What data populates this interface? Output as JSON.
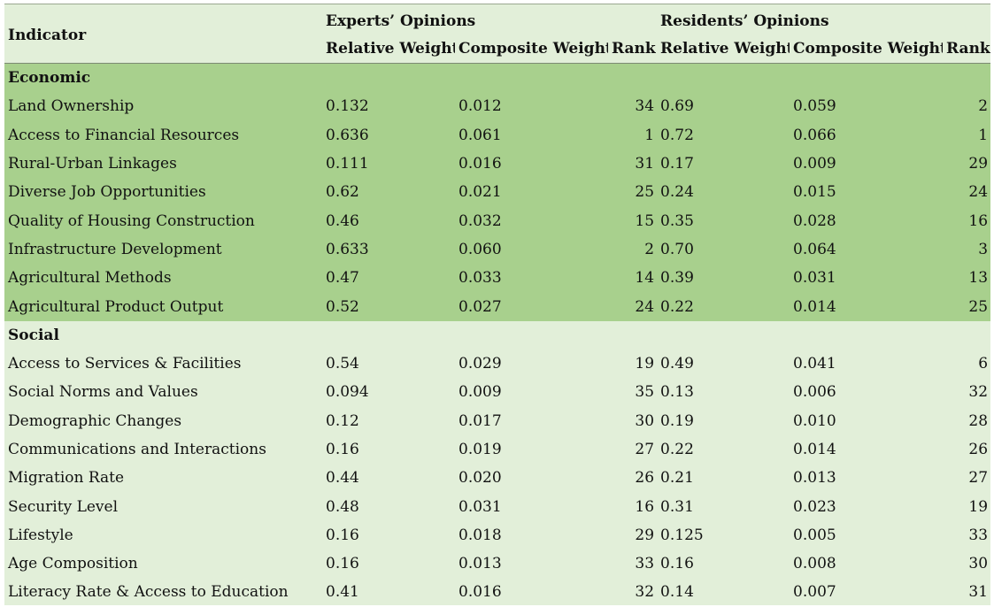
{
  "header": {
    "indicator": "Indicator",
    "experts": "Experts’ Opinions",
    "residents": "Residents’ Opinions",
    "relative_weight": "Relative Weight",
    "composite_weight": "Composite Weight",
    "rank": "Rank"
  },
  "sections": [
    {
      "name": "Economic",
      "rows": [
        {
          "indicator": "Land Ownership",
          "e_rw": "0.132",
          "e_cw": "0.012",
          "e_rank": "34",
          "r_rw": "0.69",
          "r_cw": "0.059",
          "r_rank": "2"
        },
        {
          "indicator": "Access to Financial Resources",
          "e_rw": "0.636",
          "e_cw": "0.061",
          "e_rank": "1",
          "r_rw": "0.72",
          "r_cw": "0.066",
          "r_rank": "1"
        },
        {
          "indicator": "Rural-Urban Linkages",
          "e_rw": "0.111",
          "e_cw": "0.016",
          "e_rank": "31",
          "r_rw": "0.17",
          "r_cw": "0.009",
          "r_rank": "29"
        },
        {
          "indicator": "Diverse Job Opportunities",
          "e_rw": "0.62",
          "e_cw": "0.021",
          "e_rank": "25",
          "r_rw": "0.24",
          "r_cw": "0.015",
          "r_rank": "24"
        },
        {
          "indicator": "Quality of Housing Construction",
          "e_rw": "0.46",
          "e_cw": "0.032",
          "e_rank": "15",
          "r_rw": "0.35",
          "r_cw": "0.028",
          "r_rank": "16"
        },
        {
          "indicator": "Infrastructure Development",
          "e_rw": "0.633",
          "e_cw": "0.060",
          "e_rank": "2",
          "r_rw": "0.70",
          "r_cw": "0.064",
          "r_rank": "3"
        },
        {
          "indicator": "Agricultural Methods",
          "e_rw": "0.47",
          "e_cw": "0.033",
          "e_rank": "14",
          "r_rw": "0.39",
          "r_cw": "0.031",
          "r_rank": "13"
        },
        {
          "indicator": "Agricultural Product Output",
          "e_rw": "0.52",
          "e_cw": "0.027",
          "e_rank": "24",
          "r_rw": "0.22",
          "r_cw": "0.014",
          "r_rank": "25"
        }
      ]
    },
    {
      "name": "Social",
      "rows": [
        {
          "indicator": "Access to Services & Facilities",
          "e_rw": "0.54",
          "e_cw": "0.029",
          "e_rank": "19",
          "r_rw": "0.49",
          "r_cw": "0.041",
          "r_rank": "6"
        },
        {
          "indicator": "Social Norms and Values",
          "e_rw": "0.094",
          "e_cw": "0.009",
          "e_rank": "35",
          "r_rw": "0.13",
          "r_cw": "0.006",
          "r_rank": "32"
        },
        {
          "indicator": "Demographic Changes",
          "e_rw": "0.12",
          "e_cw": "0.017",
          "e_rank": "30",
          "r_rw": "0.19",
          "r_cw": "0.010",
          "r_rank": "28"
        },
        {
          "indicator": "Communications and Interactions",
          "e_rw": "0.16",
          "e_cw": "0.019",
          "e_rank": "27",
          "r_rw": "0.22",
          "r_cw": "0.014",
          "r_rank": "26"
        },
        {
          "indicator": "Migration Rate",
          "e_rw": "0.44",
          "e_cw": "0.020",
          "e_rank": "26",
          "r_rw": "0.21",
          "r_cw": "0.013",
          "r_rank": "27"
        },
        {
          "indicator": "Security Level",
          "e_rw": "0.48",
          "e_cw": "0.031",
          "e_rank": "16",
          "r_rw": "0.31",
          "r_cw": "0.023",
          "r_rank": "19"
        },
        {
          "indicator": "Lifestyle",
          "e_rw": "0.16",
          "e_cw": "0.018",
          "e_rank": "29",
          "r_rw": "0.125",
          "r_cw": "0.005",
          "r_rank": "33"
        },
        {
          "indicator": "Age Composition",
          "e_rw": "0.16",
          "e_cw": "0.013",
          "e_rank": "33",
          "r_rw": "0.16",
          "r_cw": "0.008",
          "r_rank": "30"
        },
        {
          "indicator": "Literacy Rate & Access to Education",
          "e_rw": "0.41",
          "e_cw": "0.016",
          "e_rank": "32",
          "r_rw": "0.14",
          "r_cw": "0.007",
          "r_rank": "31"
        }
      ]
    }
  ],
  "colors": {
    "economic_band": "#a8d08d",
    "table_background": "#e2efd9"
  }
}
